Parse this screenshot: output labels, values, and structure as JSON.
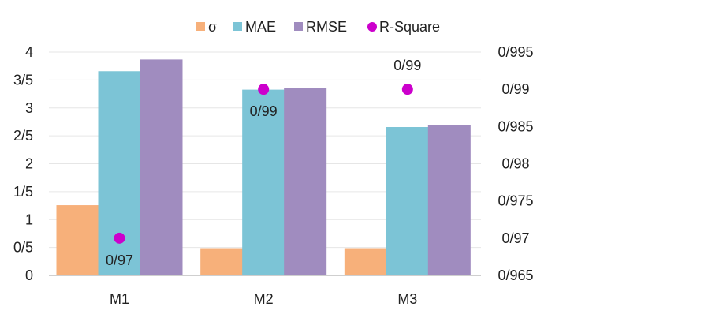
{
  "chart_data": {
    "type": "bar",
    "categories": [
      "M1",
      "M2",
      "M3"
    ],
    "series": [
      {
        "name": "σ",
        "values": [
          1.25,
          0.48,
          0.48
        ],
        "color": "#F7B07A",
        "axis": "left"
      },
      {
        "name": "MAE",
        "values": [
          3.65,
          3.32,
          2.65
        ],
        "color": "#7CC4D6",
        "axis": "left"
      },
      {
        "name": "RMSE",
        "values": [
          3.86,
          3.35,
          2.68
        ],
        "color": "#A08CBF",
        "axis": "left"
      }
    ],
    "line_series": {
      "name": "R-Square",
      "values": [
        0.97,
        0.99,
        0.99
      ],
      "labels": [
        "0/97",
        "0/99",
        "0/99"
      ],
      "color": "#CC00CC",
      "axis": "right",
      "marker": "circle"
    },
    "left_axis": {
      "ylim": [
        0,
        4
      ],
      "ticks": [
        0,
        0.5,
        1,
        1.5,
        2,
        2.5,
        3,
        3.5,
        4
      ],
      "tick_labels": [
        "0",
        "0/5",
        "1",
        "1/5",
        "2",
        "2/5",
        "3",
        "3/5",
        "4"
      ]
    },
    "right_axis": {
      "ylim": [
        0.965,
        0.995
      ],
      "ticks": [
        0.965,
        0.97,
        0.975,
        0.98,
        0.985,
        0.99,
        0.995
      ],
      "tick_labels": [
        "0/965",
        "0/97",
        "0/975",
        "0/98",
        "0/985",
        "0/99",
        "0/995"
      ]
    },
    "legend": {
      "position": "top",
      "entries": [
        "σ",
        "MAE",
        "RMSE",
        "R-Square"
      ]
    },
    "grid": true,
    "title": "",
    "xlabel": "",
    "ylabel": ""
  }
}
